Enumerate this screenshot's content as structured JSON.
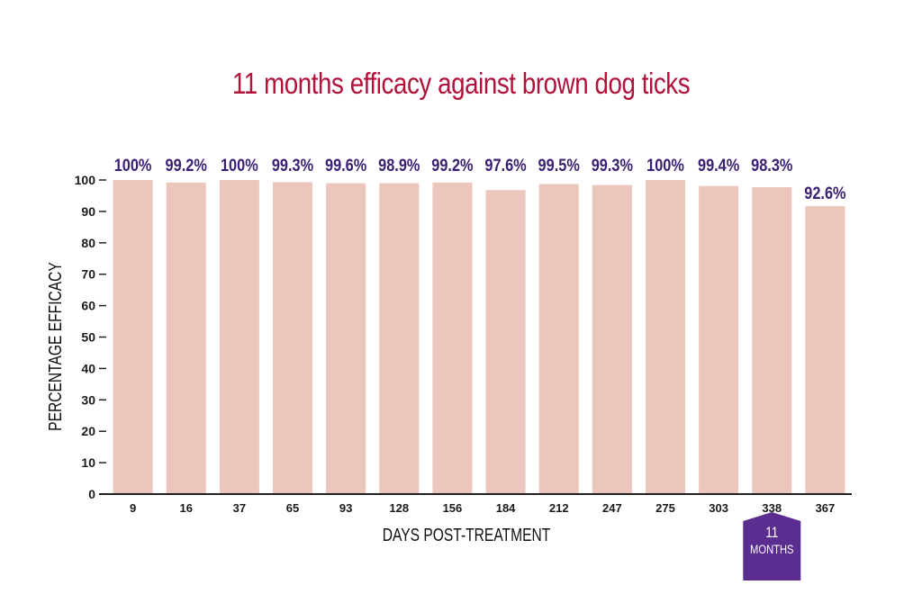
{
  "chart_data": {
    "type": "bar",
    "title": "11 months efficacy against brown dog ticks",
    "xlabel": "DAYS POST-TREATMENT",
    "ylabel": "PERCENTAGE EFFICACY",
    "categories": [
      "9",
      "16",
      "37",
      "65",
      "93",
      "128",
      "156",
      "184",
      "212",
      "247",
      "275",
      "303",
      "338",
      "367"
    ],
    "values": [
      100,
      99.2,
      100,
      99.3,
      99.6,
      98.9,
      99.2,
      97.6,
      99.5,
      99.3,
      100,
      99.4,
      98.3,
      92.6
    ],
    "display_values": [
      100,
      99.2,
      100,
      99.3,
      99,
      99,
      99.2,
      96.8,
      98.7,
      98.4,
      100,
      98.1,
      97.7,
      91.7
    ],
    "data_labels": [
      "100%",
      "99.2%",
      "100%",
      "99.3%",
      "99.6%",
      "98.9%",
      "99.2%",
      "97.6%",
      "99.5%",
      "99.3%",
      "100%",
      "99.4%",
      "98.3%",
      "92.6%"
    ],
    "yticks": [
      "0",
      "10",
      "20",
      "30",
      "40",
      "50",
      "60",
      "70",
      "80",
      "90",
      "100"
    ],
    "ylim": [
      0,
      100
    ],
    "grid": false,
    "legend": "none",
    "colors": {
      "bar": "#ecc5bd",
      "label": "#3b1f72",
      "title": "#b2123a",
      "axis": "#222222",
      "marker": "#5b2d90"
    },
    "marker": {
      "line1": "11",
      "line2": "MONTHS",
      "category": "338"
    }
  }
}
